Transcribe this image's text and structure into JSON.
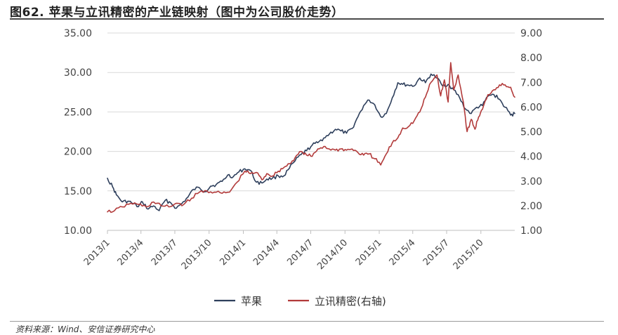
{
  "figure": {
    "title": "图62. 苹果与立讯精密的产业链映射（图中为公司股价走势）",
    "source": "资料来源：Wind、安信证券研究中心"
  },
  "chart_data": {
    "type": "line",
    "legend_position": "bottom",
    "grid": true,
    "x_ticks": [
      "2013/1",
      "2013/4",
      "2013/7",
      "2013/10",
      "2014/1",
      "2014/4",
      "2014/7",
      "2014/10",
      "2015/1",
      "2015/4",
      "2015/7",
      "2015/10"
    ],
    "x_range": [
      "2013-01-01",
      "2015-12-31"
    ],
    "y_left": {
      "range": [
        10,
        35
      ],
      "ticks": [
        "10.00",
        "15.00",
        "20.00",
        "25.00",
        "30.00",
        "35.00"
      ]
    },
    "y_right": {
      "range": [
        1,
        9
      ],
      "ticks": [
        "1.00",
        "2.00",
        "3.00",
        "4.00",
        "5.00",
        "6.00",
        "7.00",
        "8.00",
        "9.00"
      ]
    },
    "series": [
      {
        "name": "苹果",
        "axis": "left",
        "color": "#2e3f5c",
        "points": [
          [
            "2013-01-01",
            16.6
          ],
          [
            "2013-01-15",
            15.5
          ],
          [
            "2013-01-25",
            14.5
          ],
          [
            "2013-02-10",
            13.6
          ],
          [
            "2013-02-25",
            13.7
          ],
          [
            "2013-03-10",
            13.4
          ],
          [
            "2013-03-25",
            13.0
          ],
          [
            "2013-04-05",
            13.6
          ],
          [
            "2013-04-20",
            12.7
          ],
          [
            "2013-05-05",
            13.1
          ],
          [
            "2013-05-20",
            12.5
          ],
          [
            "2013-06-05",
            13.8
          ],
          [
            "2013-06-20",
            13.5
          ],
          [
            "2013-07-05",
            12.8
          ],
          [
            "2013-07-20",
            13.4
          ],
          [
            "2013-08-05",
            14.2
          ],
          [
            "2013-08-20",
            15.2
          ],
          [
            "2013-09-05",
            15.4
          ],
          [
            "2013-09-20",
            14.9
          ],
          [
            "2013-10-05",
            15.6
          ],
          [
            "2013-10-20",
            15.8
          ],
          [
            "2013-11-05",
            16.2
          ],
          [
            "2013-11-20",
            17.0
          ],
          [
            "2013-12-05",
            16.8
          ],
          [
            "2013-12-20",
            17.4
          ],
          [
            "2014-01-05",
            17.8
          ],
          [
            "2014-01-20",
            17.6
          ],
          [
            "2014-02-05",
            16.1
          ],
          [
            "2014-02-20",
            16.0
          ],
          [
            "2014-03-05",
            16.5
          ],
          [
            "2014-03-20",
            16.6
          ],
          [
            "2014-04-05",
            16.9
          ],
          [
            "2014-04-20",
            16.9
          ],
          [
            "2014-05-05",
            17.9
          ],
          [
            "2014-05-20",
            18.8
          ],
          [
            "2014-06-05",
            19.6
          ],
          [
            "2014-06-20",
            20.1
          ],
          [
            "2014-07-05",
            20.8
          ],
          [
            "2014-07-20",
            21.1
          ],
          [
            "2014-08-05",
            21.7
          ],
          [
            "2014-08-20",
            22.2
          ],
          [
            "2014-09-05",
            22.8
          ],
          [
            "2014-09-20",
            22.6
          ],
          [
            "2014-10-05",
            22.3
          ],
          [
            "2014-10-20",
            22.9
          ],
          [
            "2014-11-05",
            24.4
          ],
          [
            "2014-11-20",
            25.8
          ],
          [
            "2014-12-05",
            26.5
          ],
          [
            "2014-12-20",
            25.9
          ],
          [
            "2015-01-05",
            24.4
          ],
          [
            "2015-01-20",
            24.8
          ],
          [
            "2015-02-05",
            26.8
          ],
          [
            "2015-02-20",
            28.7
          ],
          [
            "2015-03-05",
            28.5
          ],
          [
            "2015-03-20",
            28.4
          ],
          [
            "2015-04-05",
            28.3
          ],
          [
            "2015-04-20",
            29.3
          ],
          [
            "2015-05-05",
            28.7
          ],
          [
            "2015-05-20",
            29.8
          ],
          [
            "2015-06-05",
            29.3
          ],
          [
            "2015-06-20",
            28.3
          ],
          [
            "2015-07-05",
            28.5
          ],
          [
            "2015-07-20",
            27.8
          ],
          [
            "2015-08-05",
            26.8
          ],
          [
            "2015-08-20",
            25.4
          ],
          [
            "2015-09-05",
            24.8
          ],
          [
            "2015-09-20",
            25.6
          ],
          [
            "2015-10-05",
            25.8
          ],
          [
            "2015-10-20",
            27.0
          ],
          [
            "2015-11-05",
            27.2
          ],
          [
            "2015-11-20",
            26.6
          ],
          [
            "2015-12-05",
            25.6
          ],
          [
            "2015-12-20",
            24.6
          ],
          [
            "2015-12-31",
            24.8
          ]
        ]
      },
      {
        "name": "立讯精密(右轴)",
        "axis": "right",
        "color": "#b23a3a",
        "points": [
          [
            "2013-01-01",
            1.75
          ],
          [
            "2013-01-20",
            1.8
          ],
          [
            "2013-02-10",
            1.95
          ],
          [
            "2013-03-05",
            2.1
          ],
          [
            "2013-03-25",
            2.05
          ],
          [
            "2013-04-15",
            1.95
          ],
          [
            "2013-05-05",
            2.15
          ],
          [
            "2013-05-25",
            2.0
          ],
          [
            "2013-06-15",
            1.95
          ],
          [
            "2013-07-05",
            2.1
          ],
          [
            "2013-07-25",
            2.05
          ],
          [
            "2013-08-15",
            2.3
          ],
          [
            "2013-09-05",
            2.55
          ],
          [
            "2013-09-25",
            2.6
          ],
          [
            "2013-10-15",
            2.55
          ],
          [
            "2013-11-05",
            2.5
          ],
          [
            "2013-11-25",
            2.55
          ],
          [
            "2013-12-15",
            2.95
          ],
          [
            "2014-01-05",
            3.4
          ],
          [
            "2014-01-20",
            3.3
          ],
          [
            "2014-02-05",
            3.35
          ],
          [
            "2014-02-20",
            3.05
          ],
          [
            "2014-03-05",
            3.3
          ],
          [
            "2014-03-20",
            3.2
          ],
          [
            "2014-04-05",
            3.4
          ],
          [
            "2014-04-20",
            3.55
          ],
          [
            "2014-05-05",
            3.7
          ],
          [
            "2014-05-20",
            3.95
          ],
          [
            "2014-06-05",
            4.2
          ],
          [
            "2014-06-20",
            4.05
          ],
          [
            "2014-07-05",
            4.0
          ],
          [
            "2014-07-20",
            4.3
          ],
          [
            "2014-08-05",
            4.4
          ],
          [
            "2014-08-20",
            4.3
          ],
          [
            "2014-09-05",
            4.25
          ],
          [
            "2014-09-20",
            4.3
          ],
          [
            "2014-10-05",
            4.25
          ],
          [
            "2014-10-20",
            4.3
          ],
          [
            "2014-11-05",
            4.15
          ],
          [
            "2014-11-20",
            4.05
          ],
          [
            "2014-12-05",
            4.1
          ],
          [
            "2014-12-20",
            3.9
          ],
          [
            "2015-01-05",
            3.65
          ],
          [
            "2015-01-20",
            4.1
          ],
          [
            "2015-02-05",
            4.55
          ],
          [
            "2015-02-20",
            4.75
          ],
          [
            "2015-03-05",
            5.15
          ],
          [
            "2015-03-20",
            5.2
          ],
          [
            "2015-04-05",
            5.45
          ],
          [
            "2015-04-20",
            5.8
          ],
          [
            "2015-05-05",
            6.4
          ],
          [
            "2015-05-20",
            7.0
          ],
          [
            "2015-06-05",
            7.3
          ],
          [
            "2015-06-15",
            6.45
          ],
          [
            "2015-06-25",
            7.1
          ],
          [
            "2015-07-05",
            6.2
          ],
          [
            "2015-07-12",
            7.8
          ],
          [
            "2015-07-20",
            6.7
          ],
          [
            "2015-08-01",
            7.3
          ],
          [
            "2015-08-15",
            6.2
          ],
          [
            "2015-08-25",
            5.0
          ],
          [
            "2015-09-05",
            5.5
          ],
          [
            "2015-09-15",
            5.1
          ],
          [
            "2015-09-25",
            5.6
          ],
          [
            "2015-10-05",
            5.9
          ],
          [
            "2015-10-20",
            6.5
          ],
          [
            "2015-11-05",
            6.7
          ],
          [
            "2015-11-20",
            6.9
          ],
          [
            "2015-12-05",
            6.9
          ],
          [
            "2015-12-20",
            6.8
          ],
          [
            "2015-12-31",
            6.4
          ]
        ]
      }
    ]
  }
}
